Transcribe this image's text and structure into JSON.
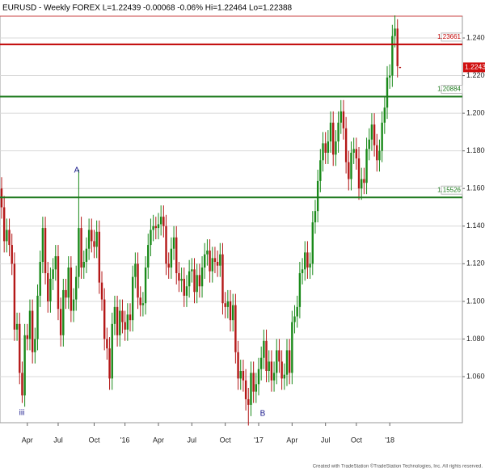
{
  "chart_data": {
    "type": "candlestick",
    "title": "EURUSD - Weekly  FOREX  L=1.22439  -0.00068  -0.06%  Hi=1.22464  Lo=1.22388",
    "footer": "Created with TradeStation ©TradeStation Technologies, Inc. All rights reserved.",
    "categories": [
      null,
      null,
      null,
      null,
      null,
      null,
      null,
      null,
      null,
      null,
      "Apr",
      null,
      null,
      null,
      null,
      null,
      null,
      null,
      null,
      null,
      null,
      null,
      "Jul",
      null,
      null,
      null,
      null,
      null,
      null,
      null,
      null,
      null,
      null,
      null,
      null,
      null,
      "Oct",
      null,
      null,
      null,
      null,
      null,
      null,
      null,
      null,
      null,
      null,
      null,
      "'16",
      null,
      null,
      null,
      null,
      null,
      null,
      null,
      null,
      null,
      null,
      null,
      null,
      "Apr",
      null,
      null,
      null,
      null,
      null,
      null,
      null,
      null,
      null,
      null,
      null,
      null,
      "Jul",
      null,
      null,
      null,
      null,
      null,
      null,
      null,
      null,
      null,
      null,
      null,
      null,
      "Oct",
      null,
      null,
      null,
      null,
      null,
      null,
      null,
      null,
      null,
      null,
      null,
      null,
      "'17",
      null,
      null,
      null,
      null,
      null,
      null,
      null,
      null,
      null,
      null,
      null,
      null,
      "Apr",
      null,
      null,
      null,
      null,
      null,
      null,
      null,
      null,
      null,
      null,
      null,
      null,
      "Jul",
      null,
      null,
      null,
      null,
      null,
      null,
      null,
      null,
      null,
      null,
      null,
      "Oct",
      null,
      null,
      null,
      null,
      null,
      null,
      null,
      null,
      null,
      null,
      null,
      null,
      "'18",
      null,
      null,
      null,
      null
    ],
    "open": [
      1.16,
      1.15,
      1.132,
      1.138,
      1.13,
      1.12,
      1.085,
      1.088,
      1.062,
      1.05,
      1.082,
      1.08,
      1.095,
      1.073,
      1.08,
      1.103,
      1.121,
      1.139,
      1.115,
      1.1,
      1.112,
      1.117,
      1.124,
      1.096,
      1.082,
      1.106,
      1.102,
      1.118,
      1.095,
      1.101,
      1.113,
      1.139,
      1.118,
      1.121,
      1.128,
      1.138,
      1.132,
      1.129,
      1.137,
      1.11,
      1.101,
      1.08,
      1.075,
      1.059,
      1.088,
      1.097,
      1.082,
      1.095,
      1.089,
      1.085,
      1.093,
      1.09,
      1.113,
      1.12,
      1.102,
      1.098,
      1.099,
      1.118,
      1.13,
      1.138,
      1.14,
      1.139,
      1.141,
      1.145,
      1.14,
      1.12,
      1.118,
      1.128,
      1.134,
      1.115,
      1.111,
      1.112,
      1.103,
      1.108,
      1.116,
      1.117,
      1.105,
      1.114,
      1.108,
      1.118,
      1.125,
      1.127,
      1.116,
      1.123,
      1.121,
      1.119,
      1.125,
      1.099,
      1.097,
      1.1,
      1.09,
      1.098,
      1.073,
      1.059,
      1.063,
      1.058,
      1.048,
      1.045,
      1.062,
      1.052,
      1.056,
      1.064,
      1.07,
      1.079,
      1.063,
      1.068,
      1.058,
      1.062,
      1.074,
      1.068,
      1.059,
      1.061,
      1.074,
      1.062,
      1.089,
      1.092,
      1.097,
      1.115,
      1.117,
      1.126,
      1.118,
      1.12,
      1.142,
      1.148,
      1.164,
      1.175,
      1.184,
      1.179,
      1.185,
      1.195,
      1.178,
      1.185,
      1.195,
      1.201,
      1.192,
      1.174,
      1.165,
      1.179,
      1.181,
      1.176,
      1.16,
      1.165,
      1.163,
      1.181,
      1.186,
      1.194,
      1.183,
      1.175,
      1.18,
      1.195,
      1.203,
      1.219,
      1.22,
      1.241,
      1.245,
      1.22451
    ],
    "high": [
      1.166,
      1.156,
      1.144,
      1.144,
      1.136,
      1.126,
      1.094,
      1.094,
      1.068,
      1.088,
      1.088,
      1.101,
      1.101,
      1.086,
      1.109,
      1.127,
      1.145,
      1.145,
      1.121,
      1.118,
      1.123,
      1.13,
      1.13,
      1.102,
      1.112,
      1.112,
      1.124,
      1.124,
      1.107,
      1.119,
      1.17,
      1.145,
      1.127,
      1.134,
      1.144,
      1.144,
      1.138,
      1.143,
      1.143,
      1.116,
      1.107,
      1.086,
      1.081,
      1.094,
      1.103,
      1.103,
      1.101,
      1.101,
      1.095,
      1.099,
      1.099,
      1.119,
      1.126,
      1.126,
      1.108,
      1.105,
      1.124,
      1.136,
      1.144,
      1.146,
      1.145,
      1.147,
      1.151,
      1.151,
      1.146,
      1.126,
      1.134,
      1.14,
      1.14,
      1.121,
      1.118,
      1.118,
      1.114,
      1.122,
      1.123,
      1.123,
      1.12,
      1.12,
      1.124,
      1.131,
      1.133,
      1.133,
      1.129,
      1.129,
      1.127,
      1.131,
      1.131,
      1.105,
      1.106,
      1.106,
      1.104,
      1.104,
      1.079,
      1.069,
      1.069,
      1.064,
      1.054,
      1.068,
      1.068,
      1.062,
      1.07,
      1.076,
      1.085,
      1.085,
      1.074,
      1.074,
      1.068,
      1.08,
      1.08,
      1.074,
      1.067,
      1.08,
      1.08,
      1.095,
      1.098,
      1.103,
      1.121,
      1.123,
      1.132,
      1.132,
      1.126,
      1.148,
      1.154,
      1.17,
      1.181,
      1.19,
      1.19,
      1.191,
      1.201,
      1.201,
      1.191,
      1.201,
      1.207,
      1.207,
      1.198,
      1.18,
      1.185,
      1.187,
      1.187,
      1.182,
      1.171,
      1.171,
      1.187,
      1.192,
      1.2,
      1.2,
      1.189,
      1.186,
      1.201,
      1.209,
      1.225,
      1.226,
      1.247,
      1.252,
      1.25,
      1.22464
    ],
    "low": [
      1.144,
      1.126,
      1.126,
      1.124,
      1.114,
      1.079,
      1.079,
      1.056,
      1.046,
      1.044,
      1.074,
      1.074,
      1.067,
      1.067,
      1.074,
      1.097,
      1.115,
      1.109,
      1.094,
      1.094,
      1.106,
      1.111,
      1.09,
      1.076,
      1.076,
      1.096,
      1.096,
      1.089,
      1.089,
      1.095,
      1.107,
      1.112,
      1.112,
      1.115,
      1.122,
      1.126,
      1.123,
      1.123,
      1.104,
      1.095,
      1.074,
      1.069,
      1.053,
      1.053,
      1.082,
      1.076,
      1.076,
      1.083,
      1.079,
      1.079,
      1.084,
      1.084,
      1.107,
      1.096,
      1.092,
      1.092,
      1.093,
      1.112,
      1.124,
      1.132,
      1.133,
      1.133,
      1.135,
      1.134,
      1.114,
      1.112,
      1.112,
      1.122,
      1.109,
      1.105,
      1.105,
      1.097,
      1.097,
      1.102,
      1.11,
      1.099,
      1.099,
      1.102,
      1.102,
      1.112,
      1.119,
      1.11,
      1.11,
      1.115,
      1.113,
      1.113,
      1.093,
      1.091,
      1.091,
      1.084,
      1.084,
      1.067,
      1.053,
      1.053,
      1.052,
      1.042,
      1.034,
      1.039,
      1.046,
      1.046,
      1.05,
      1.058,
      1.064,
      1.057,
      1.057,
      1.052,
      1.052,
      1.056,
      1.062,
      1.053,
      1.053,
      1.055,
      1.056,
      1.056,
      1.083,
      1.086,
      1.091,
      1.109,
      1.111,
      1.112,
      1.112,
      1.114,
      1.136,
      1.142,
      1.158,
      1.169,
      1.173,
      1.173,
      1.179,
      1.172,
      1.172,
      1.179,
      1.189,
      1.186,
      1.168,
      1.159,
      1.159,
      1.173,
      1.17,
      1.154,
      1.154,
      1.157,
      1.157,
      1.175,
      1.18,
      1.177,
      1.169,
      1.169,
      1.174,
      1.189,
      1.197,
      1.213,
      1.214,
      1.235,
      1.219,
      1.22388
    ],
    "close": [
      1.15,
      1.132,
      1.138,
      1.13,
      1.12,
      1.085,
      1.088,
      1.062,
      1.05,
      1.082,
      1.08,
      1.095,
      1.073,
      1.08,
      1.103,
      1.121,
      1.139,
      1.115,
      1.1,
      1.112,
      1.117,
      1.124,
      1.096,
      1.082,
      1.106,
      1.102,
      1.118,
      1.095,
      1.101,
      1.113,
      1.139,
      1.118,
      1.121,
      1.128,
      1.138,
      1.132,
      1.129,
      1.137,
      1.11,
      1.101,
      1.08,
      1.075,
      1.059,
      1.088,
      1.097,
      1.082,
      1.095,
      1.089,
      1.085,
      1.093,
      1.09,
      1.113,
      1.12,
      1.102,
      1.098,
      1.099,
      1.118,
      1.13,
      1.138,
      1.14,
      1.139,
      1.141,
      1.145,
      1.14,
      1.12,
      1.118,
      1.128,
      1.134,
      1.115,
      1.111,
      1.112,
      1.103,
      1.108,
      1.116,
      1.117,
      1.105,
      1.114,
      1.108,
      1.118,
      1.125,
      1.127,
      1.116,
      1.123,
      1.121,
      1.119,
      1.125,
      1.099,
      1.097,
      1.1,
      1.09,
      1.098,
      1.073,
      1.059,
      1.063,
      1.058,
      1.048,
      1.045,
      1.062,
      1.052,
      1.056,
      1.064,
      1.07,
      1.079,
      1.063,
      1.068,
      1.058,
      1.062,
      1.074,
      1.068,
      1.059,
      1.061,
      1.074,
      1.062,
      1.089,
      1.092,
      1.097,
      1.115,
      1.117,
      1.126,
      1.118,
      1.12,
      1.142,
      1.148,
      1.164,
      1.175,
      1.184,
      1.179,
      1.185,
      1.195,
      1.178,
      1.185,
      1.195,
      1.201,
      1.192,
      1.174,
      1.165,
      1.179,
      1.181,
      1.176,
      1.16,
      1.165,
      1.163,
      1.181,
      1.186,
      1.194,
      1.183,
      1.175,
      1.18,
      1.195,
      1.203,
      1.219,
      1.22,
      1.241,
      1.245,
      1.225,
      1.22439
    ],
    "up_color": "#1a8a1a",
    "down_color": "#b41818",
    "ylim": [
      1.0368,
      1.2516
    ],
    "yticks": [
      {
        "value": 1.06,
        "label": "1.06000"
      },
      {
        "value": 1.08,
        "label": "1.08000"
      },
      {
        "value": 1.1,
        "label": "1.10000"
      },
      {
        "value": 1.12,
        "label": "1.12000"
      },
      {
        "value": 1.14,
        "label": "1.14000"
      },
      {
        "value": 1.16,
        "label": "1.16000"
      },
      {
        "value": 1.18,
        "label": "1.18000"
      },
      {
        "value": 1.2,
        "label": "1.20000"
      },
      {
        "value": 1.22,
        "label": "1.22000"
      },
      {
        "value": 1.24,
        "label": "1.24000"
      }
    ],
    "grid": true,
    "levels": [
      {
        "value": 1.23661,
        "color": "#c00000"
      },
      {
        "value": 1.20884,
        "color": "#1e7a1e"
      },
      {
        "value": 1.15526,
        "color": "#1e7a1e"
      }
    ],
    "last": 1.22439,
    "last_color": "#d01010",
    "annotations": [
      {
        "text": "A"
      },
      {
        "text": "iii"
      },
      {
        "text": "B"
      }
    ]
  }
}
